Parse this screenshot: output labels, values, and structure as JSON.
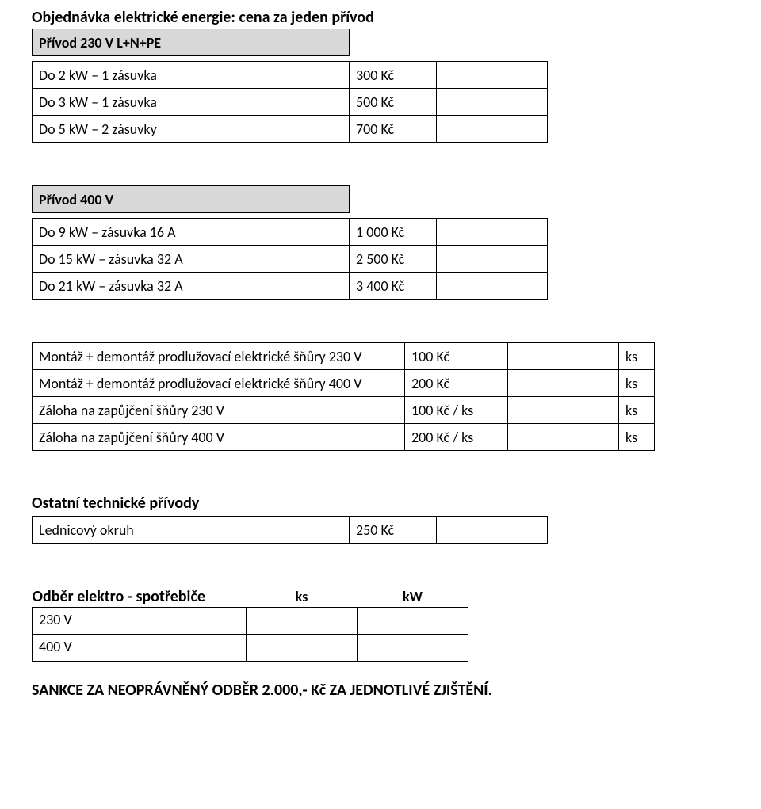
{
  "title": "Objednávka elektrické energie: cena za jeden přívod",
  "privod230": {
    "header": "Přívod 230 V L+N+PE",
    "rows": [
      {
        "label": "Do 2 kW – 1 zásuvka",
        "price": "300 Kč"
      },
      {
        "label": "Do 3 kW – 1 zásuvka",
        "price": "500 Kč"
      },
      {
        "label": "Do 5 kW – 2 zásuvky",
        "price": "700 Kč"
      }
    ]
  },
  "privod400": {
    "header": "Přívod 400 V",
    "rows": [
      {
        "label": "Do 9 kW – zásuvka 16 A",
        "price": "1 000 Kč"
      },
      {
        "label": "Do 15 kW – zásuvka 32 A",
        "price": "2 500 Kč"
      },
      {
        "label": "Do 21 kW – zásuvka 32 A",
        "price": "3 400 Kč"
      }
    ]
  },
  "montaz": {
    "rows": [
      {
        "label": "Montáž + demontáž prodlužovací elektrické šňůry 230 V",
        "price": "100 Kč",
        "unit": "ks"
      },
      {
        "label": "Montáž + demontáž prodlužovací elektrické šňůry 400 V",
        "price": "200 Kč",
        "unit": "ks"
      },
      {
        "label": "Záloha na zapůjčení šňůry 230 V",
        "price": "100 Kč / ks",
        "unit": "ks"
      },
      {
        "label": "Záloha na zapůjčení šňůry 400 V",
        "price": "200 Kč / ks",
        "unit": "ks"
      }
    ]
  },
  "ostatni": {
    "title": "Ostatní technické přívody",
    "rows": [
      {
        "label": "Lednicový okruh",
        "price": "250 Kč"
      }
    ]
  },
  "odber": {
    "title": "Odběr elektro - spotřebiče",
    "col_ks": "ks",
    "col_kw": "kW",
    "rows": [
      {
        "label": "230 V"
      },
      {
        "label": "400 V"
      }
    ]
  },
  "sankce": "SANKCE ZA NEOPRÁVNĚNÝ ODBĚR 2.000,- Kč ZA JEDNOTLIVÉ ZJIŠTĚNÍ."
}
